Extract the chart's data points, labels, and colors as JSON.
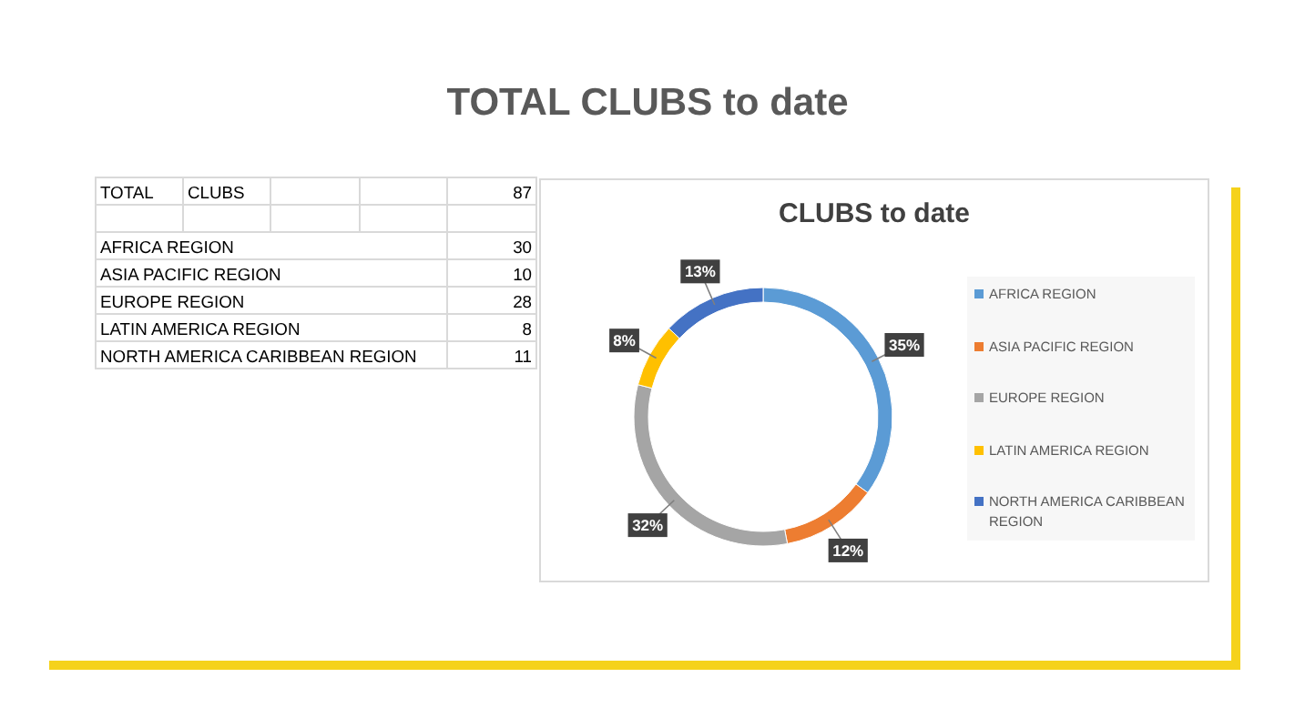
{
  "chart_data": [
    {
      "type": "other",
      "annotations": [
        "TOTAL",
        "CLUBS",
        "87"
      ],
      "categories": [
        "AFRICA REGION",
        "ASIA PACIFIC REGION",
        "EUROPE REGION",
        "LATIN AMERICA REGION",
        "NORTH AMERICA CARIBBEAN REGION"
      ],
      "values": [
        30,
        10,
        28,
        8,
        11
      ],
      "data_labels": true
    },
    {
      "type": "donut",
      "title": "TOTAL CLUBS to date",
      "subtitle": "CLUBS to date",
      "categories": [
        "AFRICA REGION",
        "ASIA PACIFIC REGION",
        "EUROPE REGION",
        "LATIN AMERICA REGION",
        "NORTH AMERICA CARIBBEAN REGION"
      ],
      "values": [
        35,
        12,
        32,
        8,
        13
      ],
      "colors": [
        "#5b9bd5",
        "#ed7d31",
        "#a5a5a5",
        "#ffc000",
        "#4472c4"
      ],
      "value_labels": [
        "35%",
        "12%",
        "32%",
        "8%",
        "13%"
      ],
      "legend": "right"
    }
  ]
}
